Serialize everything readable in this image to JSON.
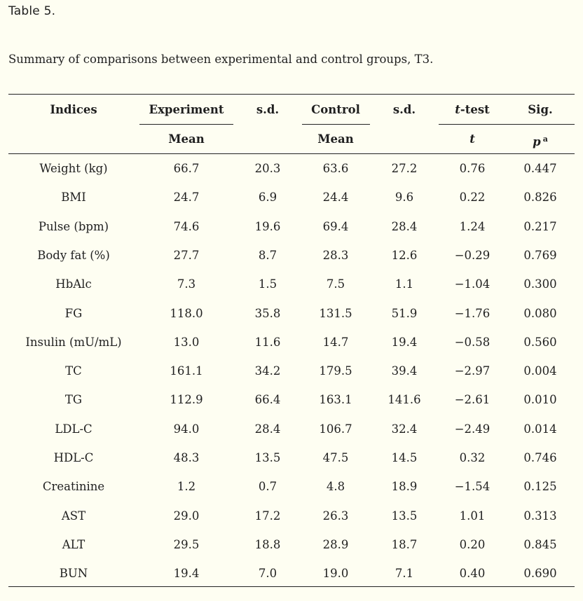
{
  "table_label": "Table 5.",
  "caption": "Summary of comparisons between experimental and control groups, T3.",
  "header": {
    "indices": "Indices",
    "experiment": "Experiment",
    "sd1": "s.d.",
    "control": "Control",
    "sd2": "s.d.",
    "ttest_italic": "t",
    "ttest_rest": "-test",
    "sig": "Sig.",
    "exp_mean": "Mean",
    "ctrl_mean": "Mean",
    "t": "t",
    "p": "p",
    "p_note": "a"
  },
  "rows": [
    {
      "index": "Weight (kg)",
      "exp_mean": "66.7",
      "exp_sd": "20.3",
      "ctrl_mean": "63.6",
      "ctrl_sd": "27.2",
      "t": "0.76",
      "p": "0.447"
    },
    {
      "index": "BMI",
      "exp_mean": "24.7",
      "exp_sd": "6.9",
      "ctrl_mean": "24.4",
      "ctrl_sd": "9.6",
      "t": "0.22",
      "p": "0.826"
    },
    {
      "index": "Pulse (bpm)",
      "exp_mean": "74.6",
      "exp_sd": "19.6",
      "ctrl_mean": "69.4",
      "ctrl_sd": "28.4",
      "t": "1.24",
      "p": "0.217"
    },
    {
      "index": "Body fat (%)",
      "exp_mean": "27.7",
      "exp_sd": "8.7",
      "ctrl_mean": "28.3",
      "ctrl_sd": "12.6",
      "t": "−0.29",
      "p": "0.769"
    },
    {
      "index": "HbAlc",
      "exp_mean": "7.3",
      "exp_sd": "1.5",
      "ctrl_mean": "7.5",
      "ctrl_sd": "1.1",
      "t": "−1.04",
      "p": "0.300"
    },
    {
      "index": "FG",
      "exp_mean": "118.0",
      "exp_sd": "35.8",
      "ctrl_mean": "131.5",
      "ctrl_sd": "51.9",
      "t": "−1.76",
      "p": "0.080"
    },
    {
      "index": "Insulin (mU/mL)",
      "exp_mean": "13.0",
      "exp_sd": "11.6",
      "ctrl_mean": "14.7",
      "ctrl_sd": "19.4",
      "t": "−0.58",
      "p": "0.560"
    },
    {
      "index": "TC",
      "exp_mean": "161.1",
      "exp_sd": "34.2",
      "ctrl_mean": "179.5",
      "ctrl_sd": "39.4",
      "t": "−2.97",
      "p": "0.004"
    },
    {
      "index": "TG",
      "exp_mean": "112.9",
      "exp_sd": "66.4",
      "ctrl_mean": "163.1",
      "ctrl_sd": "141.6",
      "t": "−2.61",
      "p": "0.010"
    },
    {
      "index": "LDL-C",
      "exp_mean": "94.0",
      "exp_sd": "28.4",
      "ctrl_mean": "106.7",
      "ctrl_sd": "32.4",
      "t": "−2.49",
      "p": "0.014"
    },
    {
      "index": "HDL-C",
      "exp_mean": "48.3",
      "exp_sd": "13.5",
      "ctrl_mean": "47.5",
      "ctrl_sd": "14.5",
      "t": "0.32",
      "p": "0.746"
    },
    {
      "index": "Creatinine",
      "exp_mean": "1.2",
      "exp_sd": "0.7",
      "ctrl_mean": "4.8",
      "ctrl_sd": "18.9",
      "t": "−1.54",
      "p": "0.125"
    },
    {
      "index": "AST",
      "exp_mean": "29.0",
      "exp_sd": "17.2",
      "ctrl_mean": "26.3",
      "ctrl_sd": "13.5",
      "t": "1.01",
      "p": "0.313"
    },
    {
      "index": "ALT",
      "exp_mean": "29.5",
      "exp_sd": "18.8",
      "ctrl_mean": "28.9",
      "ctrl_sd": "18.7",
      "t": "0.20",
      "p": "0.845"
    },
    {
      "index": "BUN",
      "exp_mean": "19.4",
      "exp_sd": "7.0",
      "ctrl_mean": "19.0",
      "ctrl_sd": "7.1",
      "t": "0.40",
      "p": "0.690"
    }
  ]
}
